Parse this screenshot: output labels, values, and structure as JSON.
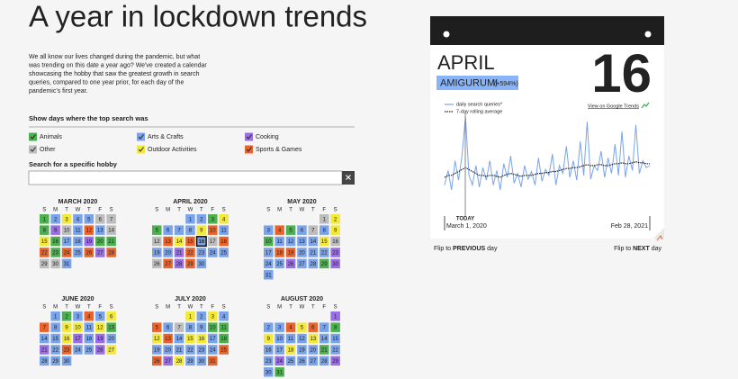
{
  "header": {
    "title": "A year in lockdown trends",
    "intro": [
      "We all know our lives changed during the pandemic, but what",
      "was trending on this date a year ago? We've created a calendar",
      "showcasing the hobby that saw the greatest growth in search",
      "queries, compared to one year prior, for each day of the",
      "pandemic's first year."
    ]
  },
  "filters": {
    "label": "Show days where the top search was",
    "categories": [
      {
        "key": "g",
        "label": "Animals",
        "color": "#4caf50"
      },
      {
        "key": "b",
        "label": "Arts & Crafts",
        "color": "#7aa3ea"
      },
      {
        "key": "p",
        "label": "Cooking",
        "color": "#9a6ee6"
      },
      {
        "key": "o",
        "label": "Other",
        "color": "#bdbdbd"
      },
      {
        "key": "y",
        "label": "Outdoor Activities",
        "color": "#f3e83c"
      },
      {
        "key": "s",
        "label": "Sports & Games",
        "color": "#e8642c"
      }
    ]
  },
  "search": {
    "label": "Search for a specific hobby"
  },
  "calendar": {
    "weekdays": [
      "S",
      "M",
      "T",
      "W",
      "T",
      "F",
      "S"
    ],
    "months": [
      {
        "name": "MARCH 2020",
        "weeks": [
          [
            1,
            2,
            3,
            4,
            5,
            6,
            7
          ],
          [
            8,
            9,
            10,
            11,
            12,
            13,
            14
          ],
          [
            15,
            16,
            17,
            18,
            19,
            20,
            21
          ],
          [
            22,
            23,
            24,
            25,
            26,
            27,
            28
          ],
          [
            29,
            30,
            31
          ]
        ],
        "cats": "gbybboogpobsboygbbpggsgsbspsoob"
      },
      {
        "name": "APRIL 2020",
        "weeks": [
          [
            null,
            null,
            null,
            1,
            2,
            3,
            4
          ],
          [
            5,
            6,
            7,
            8,
            9,
            10,
            11
          ],
          [
            12,
            13,
            14,
            15,
            16,
            17,
            18
          ],
          [
            19,
            20,
            21,
            22,
            23,
            24,
            25
          ],
          [
            26,
            27,
            28,
            29,
            30
          ]
        ],
        "cats": "bbgygbbbysbosysbosbbpsbbbospsb"
      },
      {
        "name": "MAY 2020",
        "weeks": [
          [
            null,
            null,
            null,
            null,
            null,
            1,
            2
          ],
          [
            3,
            4,
            5,
            6,
            7,
            8,
            9
          ],
          [
            10,
            11,
            12,
            13,
            14,
            15,
            16
          ],
          [
            17,
            18,
            19,
            20,
            21,
            22,
            23
          ],
          [
            24,
            25,
            26,
            27,
            28,
            29,
            30
          ],
          [
            31
          ]
        ],
        "cats": "oybsgbobygbbbbyobssbbbpbbpbbgpb"
      },
      {
        "name": "JUNE 2020",
        "weeks": [
          [
            null,
            1,
            2,
            3,
            4,
            5,
            6
          ],
          [
            7,
            8,
            9,
            10,
            11,
            12,
            13
          ],
          [
            14,
            15,
            16,
            17,
            18,
            19,
            20
          ],
          [
            21,
            22,
            23,
            24,
            25,
            26,
            27
          ],
          [
            28,
            29,
            30
          ]
        ],
        "cats": "bgbsbysbyybygbbypbpbpbsbbpybbb"
      },
      {
        "name": "JULY 2020",
        "weeks": [
          [
            null,
            null,
            null,
            1,
            2,
            3,
            4
          ],
          [
            5,
            6,
            7,
            8,
            9,
            10,
            11
          ],
          [
            12,
            13,
            14,
            15,
            16,
            17,
            18
          ],
          [
            19,
            20,
            21,
            22,
            23,
            24,
            25
          ],
          [
            26,
            27,
            28,
            29,
            30,
            31
          ]
        ],
        "cats": "ybybsbobbggysbyybgbbbbbbsspybbs"
      },
      {
        "name": "AUGUST 2020",
        "weeks": [
          [
            null,
            null,
            null,
            null,
            null,
            null,
            1
          ],
          [
            2,
            3,
            4,
            5,
            6,
            7,
            8
          ],
          [
            9,
            10,
            11,
            12,
            13,
            14,
            15
          ],
          [
            16,
            17,
            18,
            19,
            20,
            21,
            22
          ],
          [
            23,
            24,
            25,
            26,
            27,
            28,
            29
          ],
          [
            30,
            31
          ]
        ],
        "cats": "pbbsysbgybbbybbbbybbgbbpbbbbpbg"
      }
    ]
  },
  "card": {
    "month": "APRIL",
    "day": 16,
    "hobby": "AMIGURUMI",
    "change": "(+594%)",
    "legend": [
      "daily search queries*",
      "7-day rolling average"
    ],
    "link": "View on Google Trends",
    "marker": "TODAY",
    "start": "March 1, 2020",
    "end": "Feb 28, 2021",
    "chart": {
      "ylim": [
        0,
        100
      ],
      "daily": [
        30,
        45,
        25,
        55,
        35,
        60,
        100,
        40,
        30,
        50,
        28,
        48,
        35,
        55,
        30,
        45,
        25,
        52,
        38,
        60,
        32,
        42,
        28,
        50,
        36,
        44,
        30,
        58,
        34,
        46,
        40,
        62,
        30,
        50,
        42,
        70,
        38,
        55,
        35,
        75,
        40,
        95,
        36,
        50,
        45,
        65,
        38,
        58,
        42,
        72,
        40,
        85,
        38,
        60,
        45,
        92,
        42,
        55,
        48,
        50
      ],
      "rolling": [
        38,
        40,
        40,
        42,
        44,
        46,
        48,
        46,
        44,
        42,
        40,
        40,
        39,
        40,
        40,
        39,
        38,
        40,
        41,
        42,
        41,
        40,
        39,
        40,
        40,
        40,
        41,
        42,
        42,
        43,
        43,
        44,
        44,
        45,
        46,
        47,
        47,
        48,
        48,
        49,
        50,
        51,
        50,
        50,
        51,
        51,
        50,
        50,
        51,
        52,
        52,
        53,
        52,
        52,
        53,
        54,
        53,
        53,
        52,
        52
      ]
    }
  },
  "nav": {
    "prev": {
      "lead": "Flip to",
      "emph": "PREVIOUS",
      "tail": "day"
    },
    "next": {
      "lead": "Flip to",
      "emph": "NEXT",
      "tail": "day"
    }
  }
}
